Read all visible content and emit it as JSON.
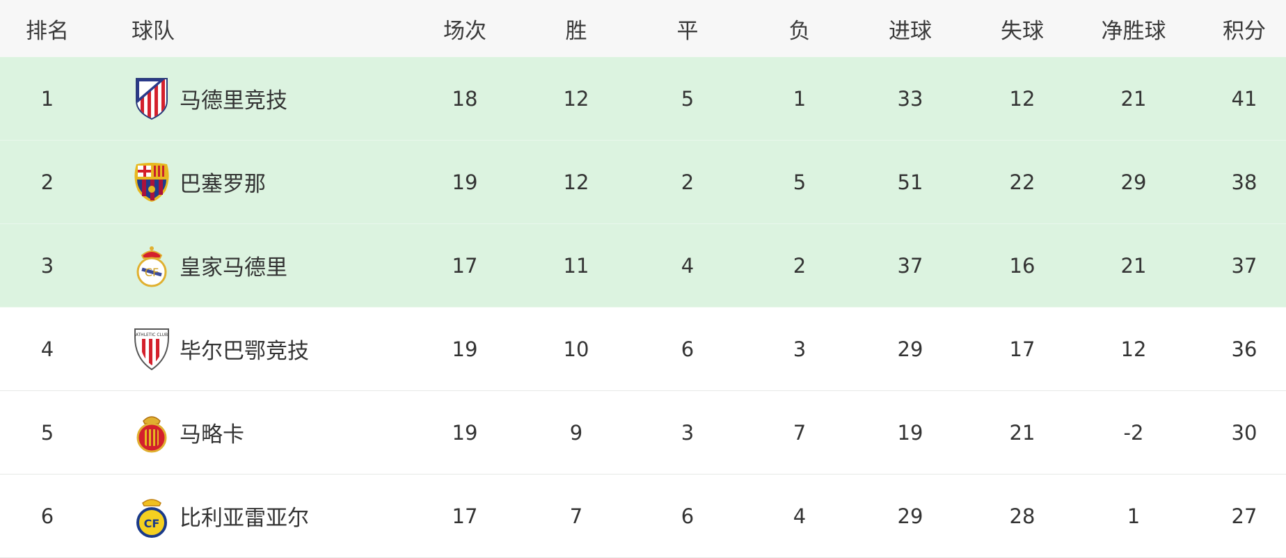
{
  "columns": [
    "排名",
    "球队",
    "场次",
    "胜",
    "平",
    "负",
    "进球",
    "失球",
    "净胜球",
    "积分"
  ],
  "highlight_color": "#dcf3e0",
  "rows": [
    {
      "rank": "1",
      "team": "马德里竞技",
      "logo": "atletico-madrid-crest-icon",
      "played": "18",
      "won": "12",
      "drawn": "5",
      "lost": "1",
      "gf": "33",
      "ga": "12",
      "gd": "21",
      "pts": "41",
      "highlight": true
    },
    {
      "rank": "2",
      "team": "巴塞罗那",
      "logo": "barcelona-crest-icon",
      "played": "19",
      "won": "12",
      "drawn": "2",
      "lost": "5",
      "gf": "51",
      "ga": "22",
      "gd": "29",
      "pts": "38",
      "highlight": true
    },
    {
      "rank": "3",
      "team": "皇家马德里",
      "logo": "real-madrid-crest-icon",
      "played": "17",
      "won": "11",
      "drawn": "4",
      "lost": "2",
      "gf": "37",
      "ga": "16",
      "gd": "21",
      "pts": "37",
      "highlight": true
    },
    {
      "rank": "4",
      "team": "毕尔巴鄂竞技",
      "logo": "athletic-club-crest-icon",
      "played": "19",
      "won": "10",
      "drawn": "6",
      "lost": "3",
      "gf": "29",
      "ga": "17",
      "gd": "12",
      "pts": "36",
      "highlight": false
    },
    {
      "rank": "5",
      "team": "马略卡",
      "logo": "mallorca-crest-icon",
      "played": "19",
      "won": "9",
      "drawn": "3",
      "lost": "7",
      "gf": "19",
      "ga": "21",
      "gd": "-2",
      "pts": "30",
      "highlight": false
    },
    {
      "rank": "6",
      "team": "比利亚雷亚尔",
      "logo": "villarreal-crest-icon",
      "played": "17",
      "won": "7",
      "drawn": "6",
      "lost": "4",
      "gf": "29",
      "ga": "28",
      "gd": "1",
      "pts": "27",
      "highlight": false
    }
  ]
}
